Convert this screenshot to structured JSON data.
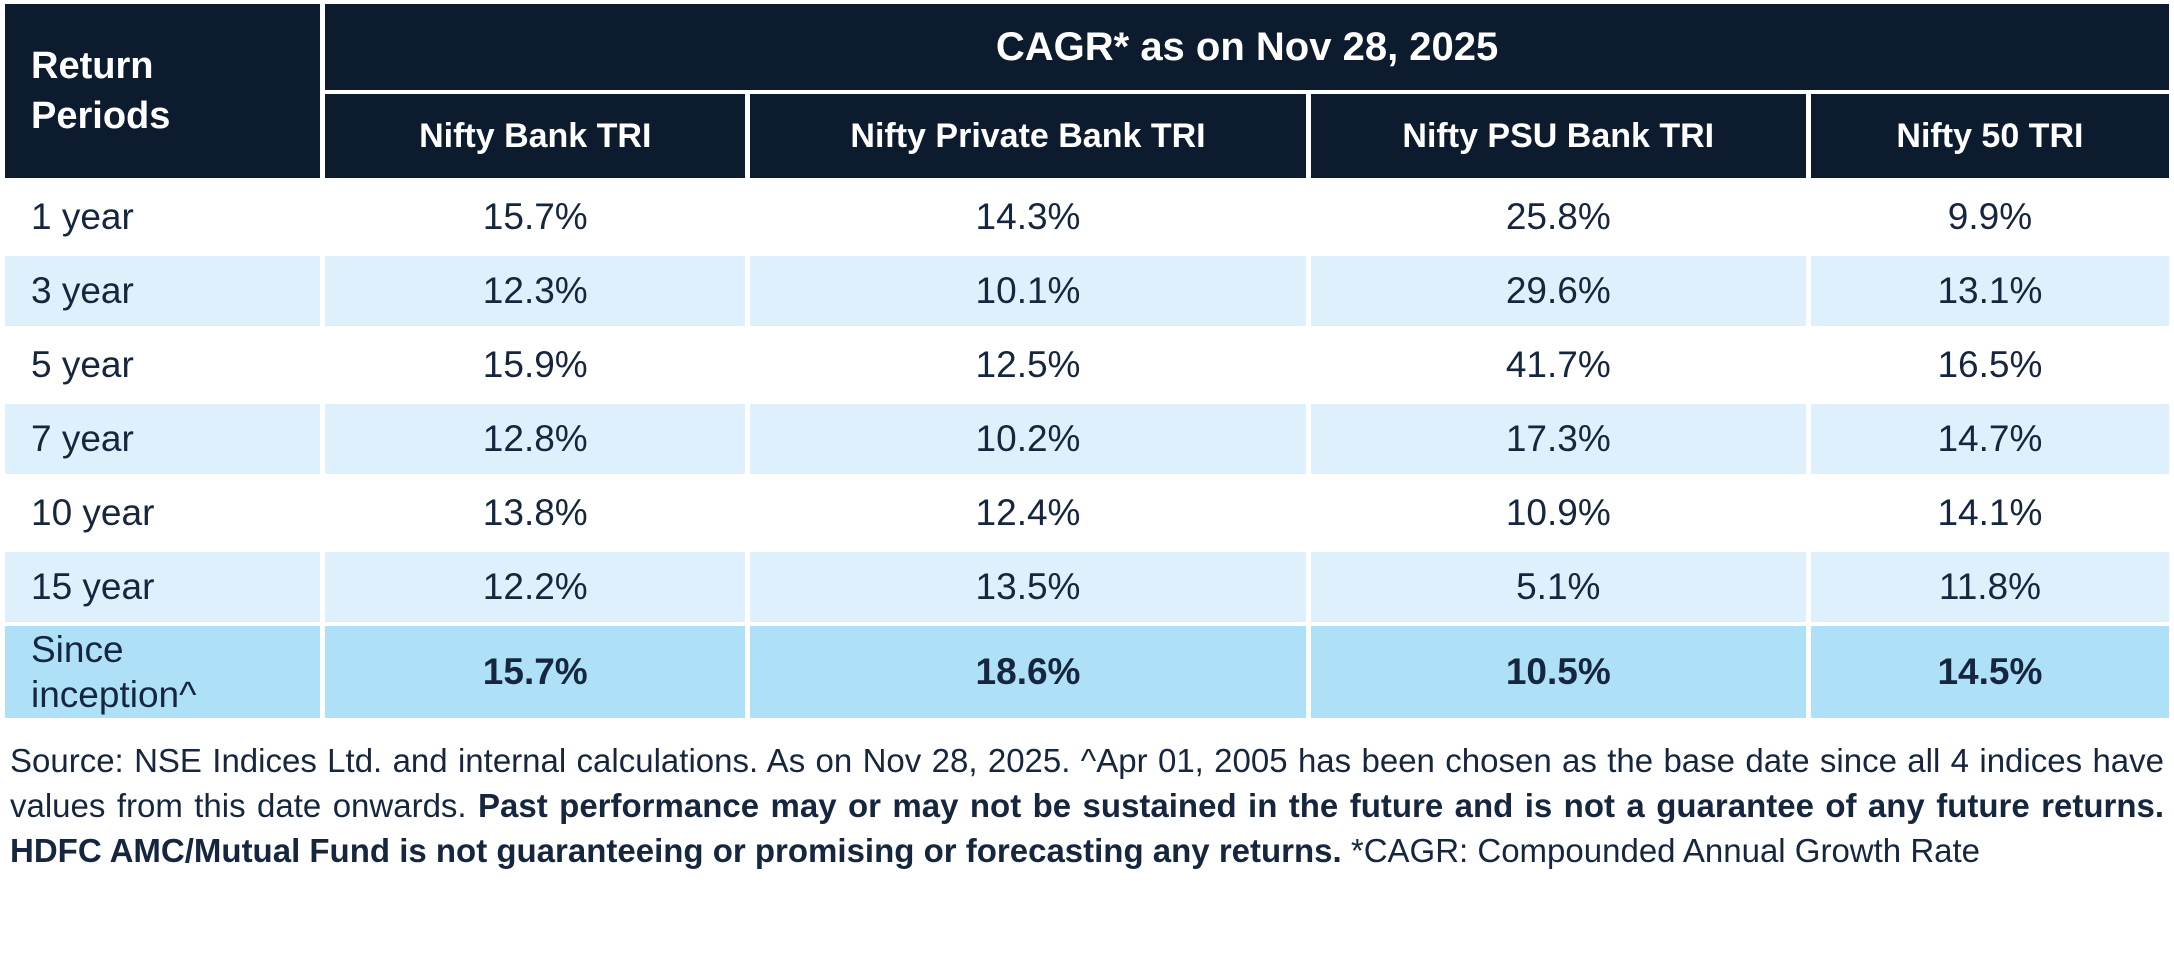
{
  "table": {
    "corner_header": "Return Periods",
    "main_header": "CAGR* as on Nov 28, 2025",
    "columns": [
      "Nifty Bank TRI",
      "Nifty Private Bank TRI",
      "Nifty PSU Bank TRI",
      "Nifty 50 TRI"
    ],
    "rows": [
      {
        "label": "1 year",
        "values": [
          "15.7%",
          "14.3%",
          "25.8%",
          "9.9%"
        ]
      },
      {
        "label": "3 year",
        "values": [
          "12.3%",
          "10.1%",
          "29.6%",
          "13.1%"
        ]
      },
      {
        "label": "5 year",
        "values": [
          "15.9%",
          "12.5%",
          "41.7%",
          "16.5%"
        ]
      },
      {
        "label": "7 year",
        "values": [
          "12.8%",
          "10.2%",
          "17.3%",
          "14.7%"
        ]
      },
      {
        "label": "10 year",
        "values": [
          "13.8%",
          "12.4%",
          "10.9%",
          "14.1%"
        ]
      },
      {
        "label": "15 year",
        "values": [
          "12.2%",
          "13.5%",
          "5.1%",
          "11.8%"
        ]
      },
      {
        "label": "Since inception^",
        "values": [
          "15.7%",
          "18.6%",
          "10.5%",
          "14.5%"
        ]
      }
    ]
  },
  "footer": {
    "regular1": "Source: NSE Indices Ltd. and internal calculations. As on Nov 28, 2025. ^Apr 01, 2005 has been chosen as the base date since all 4 indices have values from this date onwards. ",
    "bold": "Past performance may or may not be sustained in the future and is not a guarantee of any future returns. HDFC AMC/Mutual Fund is not guaranteeing or promising or forecasting any returns.",
    "regular2": " *CAGR: Compounded Annual Growth Rate"
  },
  "colors": {
    "header_navy": "#0d1b2e",
    "header_text": "#ffffff",
    "stripe_blue": "#def0fc",
    "highlight_blue": "#aee0f8",
    "body_text_navy": "#16263f"
  },
  "chart_data": {
    "type": "table",
    "title": "CAGR* as on Nov 28, 2025",
    "row_header": "Return Periods",
    "columns": [
      "Nifty Bank TRI",
      "Nifty Private Bank TRI",
      "Nifty PSU Bank TRI",
      "Nifty 50 TRI"
    ],
    "row_labels": [
      "1 year",
      "3 year",
      "5 year",
      "7 year",
      "10 year",
      "15 year",
      "Since inception^"
    ],
    "values_pct": [
      [
        15.7,
        14.3,
        25.8,
        9.9
      ],
      [
        12.3,
        10.1,
        29.6,
        13.1
      ],
      [
        15.9,
        12.5,
        41.7,
        16.5
      ],
      [
        12.8,
        10.2,
        17.3,
        14.7
      ],
      [
        13.8,
        12.4,
        10.9,
        14.1
      ],
      [
        12.2,
        13.5,
        5.1,
        11.8
      ],
      [
        15.7,
        18.6,
        10.5,
        14.5
      ]
    ],
    "notes": "Source: NSE Indices Ltd. and internal calculations. As on Nov 28, 2025. ^Apr 01, 2005 has been chosen as the base date since all 4 indices have values from this date onwards. Past performance may or may not be sustained in the future and is not a guarantee of any future returns. HDFC AMC/Mutual Fund is not guaranteeing or promising or forecasting any returns. *CAGR: Compounded Annual Growth Rate"
  }
}
